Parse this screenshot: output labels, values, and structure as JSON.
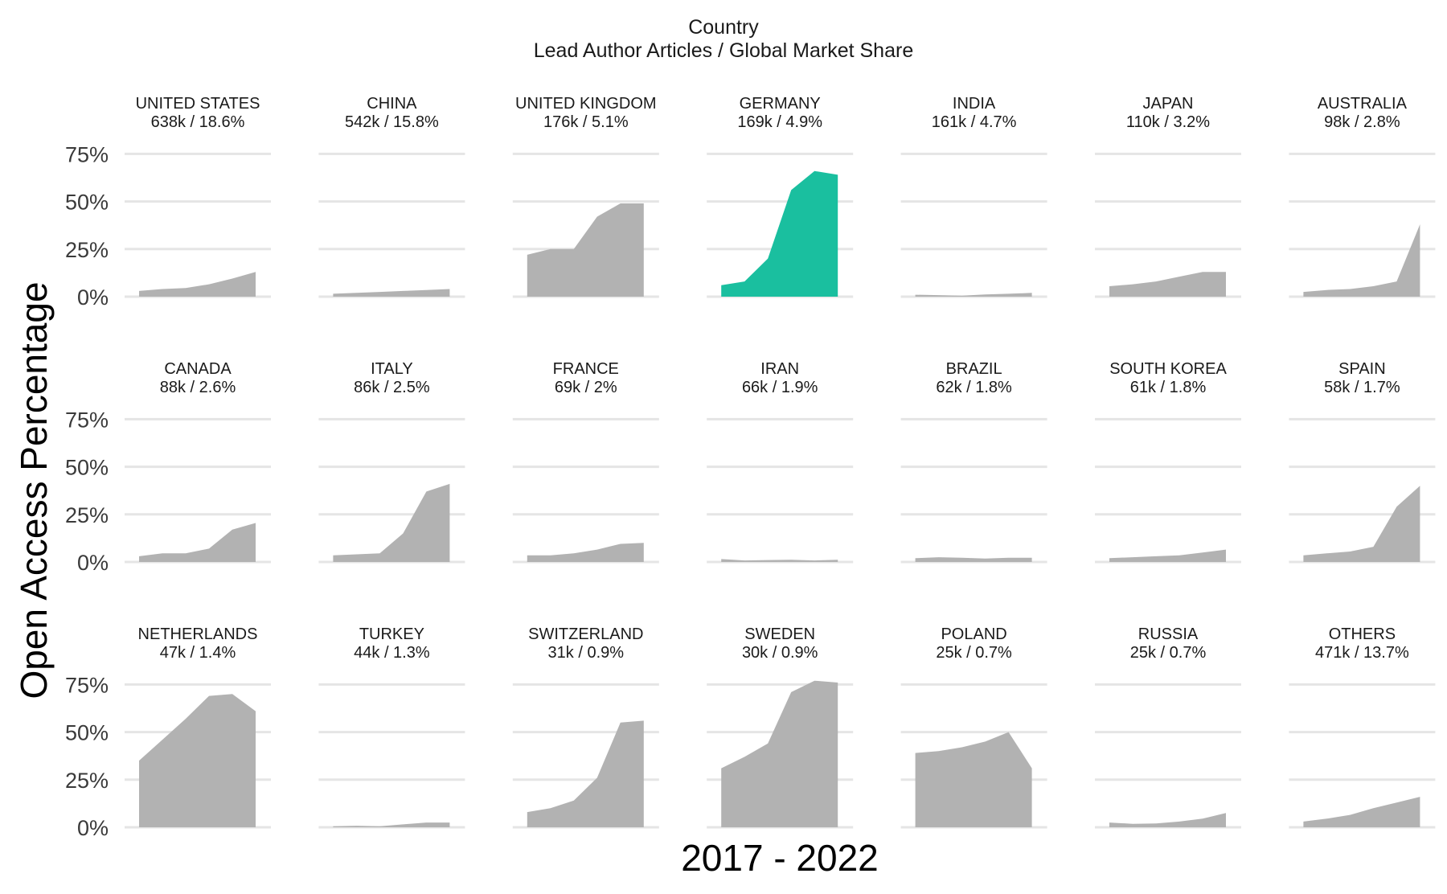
{
  "chart_data": {
    "type": "area",
    "title": "Country",
    "subtitle": "Lead Author Articles / Global Market Share",
    "xlabel": "2017 - 2022",
    "ylabel": "Open Access Percentage",
    "x": [
      2017,
      2018,
      2019,
      2020,
      2021,
      2022
    ],
    "ylim": [
      0,
      0.75
    ],
    "yticks": [
      0,
      0.25,
      0.5,
      0.75
    ],
    "ytick_labels": [
      "0%",
      "25%",
      "50%",
      "75%"
    ],
    "grid": "horizontal",
    "colors": {
      "default": "#b2b2b2",
      "highlight": "#1abf9f",
      "grid": "#e5e5e5"
    },
    "highlight": "GERMANY",
    "panels": [
      {
        "name": "UNITED STATES",
        "stat": "638k / 18.6%",
        "values": [
          0.03,
          0.04,
          0.045,
          0.065,
          0.095,
          0.13
        ]
      },
      {
        "name": "CHINA",
        "stat": "542k / 15.8%",
        "values": [
          0.015,
          0.02,
          0.025,
          0.03,
          0.035,
          0.04
        ]
      },
      {
        "name": "UNITED KINGDOM",
        "stat": "176k / 5.1%",
        "values": [
          0.22,
          0.25,
          0.25,
          0.42,
          0.49,
          0.49
        ]
      },
      {
        "name": "GERMANY",
        "stat": "169k / 4.9%",
        "values": [
          0.06,
          0.08,
          0.2,
          0.56,
          0.66,
          0.64
        ]
      },
      {
        "name": "INDIA",
        "stat": "161k / 4.7%",
        "values": [
          0.01,
          0.008,
          0.005,
          0.012,
          0.015,
          0.02
        ]
      },
      {
        "name": "JAPAN",
        "stat": "110k / 3.2%",
        "values": [
          0.055,
          0.065,
          0.08,
          0.105,
          0.13,
          0.13
        ]
      },
      {
        "name": "AUSTRALIA",
        "stat": "98k / 2.8%",
        "values": [
          0.025,
          0.035,
          0.04,
          0.055,
          0.08,
          0.38
        ]
      },
      {
        "name": "CANADA",
        "stat": "88k / 2.6%",
        "values": [
          0.03,
          0.045,
          0.045,
          0.07,
          0.17,
          0.205
        ]
      },
      {
        "name": "ITALY",
        "stat": "86k / 2.5%",
        "values": [
          0.035,
          0.04,
          0.045,
          0.15,
          0.37,
          0.41
        ]
      },
      {
        "name": "FRANCE",
        "stat": "69k / 2%",
        "values": [
          0.035,
          0.035,
          0.045,
          0.065,
          0.095,
          0.1
        ]
      },
      {
        "name": "IRAN",
        "stat": "66k / 1.9%",
        "values": [
          0.015,
          0.008,
          0.01,
          0.012,
          0.008,
          0.012
        ]
      },
      {
        "name": "BRAZIL",
        "stat": "62k / 1.8%",
        "values": [
          0.02,
          0.025,
          0.022,
          0.018,
          0.022,
          0.022
        ]
      },
      {
        "name": "SOUTH KOREA",
        "stat": "61k / 1.8%",
        "values": [
          0.02,
          0.025,
          0.03,
          0.035,
          0.05,
          0.065
        ]
      },
      {
        "name": "SPAIN",
        "stat": "58k / 1.7%",
        "values": [
          0.035,
          0.045,
          0.055,
          0.08,
          0.29,
          0.4
        ]
      },
      {
        "name": "NETHERLANDS",
        "stat": "47k / 1.4%",
        "values": [
          0.35,
          0.46,
          0.57,
          0.69,
          0.7,
          0.61
        ]
      },
      {
        "name": "TURKEY",
        "stat": "44k / 1.3%",
        "values": [
          0.005,
          0.008,
          0.005,
          0.015,
          0.025,
          0.025
        ]
      },
      {
        "name": "SWITZERLAND",
        "stat": "31k / 0.9%",
        "values": [
          0.08,
          0.1,
          0.14,
          0.26,
          0.55,
          0.56
        ]
      },
      {
        "name": "SWEDEN",
        "stat": "30k / 0.9%",
        "values": [
          0.31,
          0.37,
          0.44,
          0.71,
          0.77,
          0.76
        ]
      },
      {
        "name": "POLAND",
        "stat": "25k / 0.7%",
        "values": [
          0.39,
          0.4,
          0.42,
          0.45,
          0.5,
          0.31
        ]
      },
      {
        "name": "RUSSIA",
        "stat": "25k / 0.7%",
        "values": [
          0.025,
          0.018,
          0.02,
          0.03,
          0.045,
          0.075
        ]
      },
      {
        "name": "OTHERS",
        "stat": "471k / 13.7%",
        "values": [
          0.03,
          0.045,
          0.065,
          0.1,
          0.13,
          0.16
        ]
      }
    ]
  }
}
